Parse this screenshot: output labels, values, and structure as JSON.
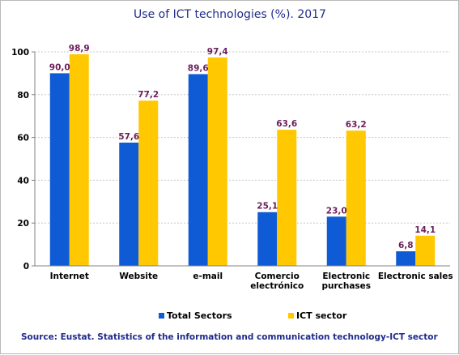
{
  "chart_data": {
    "type": "bar",
    "title": "Use of ICT technologies (%). 2017",
    "categories": [
      [
        "Internet"
      ],
      [
        "Website"
      ],
      [
        "e-mail"
      ],
      [
        "Comercio",
        "electrónico"
      ],
      [
        "Electronic",
        "purchases"
      ],
      [
        "Electronic sales"
      ]
    ],
    "series": [
      {
        "name": "Total Sectors",
        "color": "#0f5bd6",
        "values": [
          90.0,
          57.6,
          89.6,
          25.1,
          23.0,
          6.8
        ],
        "labels": [
          "90,0",
          "57,6",
          "89,6",
          "25,1",
          "23,0",
          "6,8"
        ]
      },
      {
        "name": "ICT sector",
        "color": "#ffc800",
        "values": [
          98.9,
          77.2,
          97.4,
          63.6,
          63.2,
          14.1
        ],
        "labels": [
          "98,9",
          "77,2",
          "97,4",
          "63,6",
          "63,2",
          "14,1"
        ]
      }
    ],
    "ylim": [
      0,
      100
    ],
    "yticks": [
      0,
      20,
      40,
      60,
      80,
      100
    ],
    "grid": true,
    "legend_position": "bottom",
    "source": "Source: Eustat. Statistics of the information and communication technology-ICT sector"
  }
}
